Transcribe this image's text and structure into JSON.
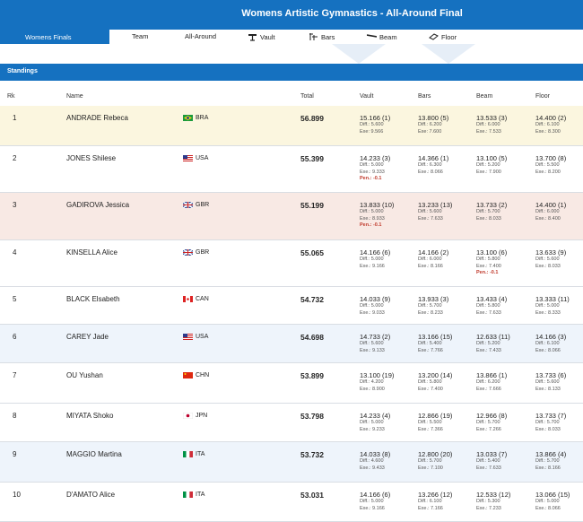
{
  "header": {
    "title": "Womens Artistic Gymnastics - All-Around Final",
    "section": "Womens Finals"
  },
  "nav": [
    {
      "label": "Team",
      "icon": ""
    },
    {
      "label": "All-Around",
      "icon": ""
    },
    {
      "label": "Vault",
      "icon": "vault-icon"
    },
    {
      "label": "Bars",
      "icon": "bars-icon"
    },
    {
      "label": "Beam",
      "icon": "beam-icon"
    },
    {
      "label": "Floor",
      "icon": "floor-icon"
    }
  ],
  "standings": {
    "title": "Standings",
    "columns": {
      "rank": "Rk",
      "name": "Name",
      "total": "Total",
      "vault": "Vault",
      "bars": "Bars",
      "beam": "Beam",
      "floor": "Floor"
    },
    "rows": [
      {
        "rank": "1",
        "name": "ANDRADE Rebeca",
        "country": "BRA",
        "total": "56.899",
        "bg": "#fbf6df",
        "vault": {
          "score": "15.166 (1)",
          "diff": "Diff.: 5.600",
          "exe": "Exe: 9.566",
          "pen": ""
        },
        "bars": {
          "score": "13.800 (5)",
          "diff": "Diff.: 6.200",
          "exe": "Exe: 7.600",
          "pen": ""
        },
        "beam": {
          "score": "13.533 (3)",
          "diff": "Diff.: 6.000",
          "exe": "Exe.: 7.533",
          "pen": ""
        },
        "floor": {
          "score": "14.400 (2)",
          "diff": "Diff.: 6.100",
          "exe": "Exe.: 8.300",
          "pen": ""
        }
      },
      {
        "rank": "2",
        "name": "JONES Shilese",
        "country": "USA",
        "total": "55.399",
        "bg": "#ffffff",
        "vault": {
          "score": "14.233 (3)",
          "diff": "Diff.: 5.000",
          "exe": "Exe.: 9.333",
          "pen": "Pen.: -0.1"
        },
        "bars": {
          "score": "14.366 (1)",
          "diff": "Diff.: 6.300",
          "exe": "Exe.: 8.066",
          "pen": ""
        },
        "beam": {
          "score": "13.100 (5)",
          "diff": "Diff.: 5.200",
          "exe": "Exe.: 7.900",
          "pen": ""
        },
        "floor": {
          "score": "13.700 (8)",
          "diff": "Diff.: 5.500",
          "exe": "Exe.: 8.200",
          "pen": ""
        }
      },
      {
        "rank": "3",
        "name": "GADIROVA Jessica",
        "country": "GBR",
        "total": "55.199",
        "bg": "#f8e9e4",
        "vault": {
          "score": "13.833 (10)",
          "diff": "Diff.: 5.000",
          "exe": "Exe.: 8.933",
          "pen": "Pen.: -0.1"
        },
        "bars": {
          "score": "13.233 (13)",
          "diff": "Diff.: 5.600",
          "exe": "Exe.: 7.633",
          "pen": ""
        },
        "beam": {
          "score": "13.733 (2)",
          "diff": "Diff.: 5.700",
          "exe": "Exe.: 8.033",
          "pen": ""
        },
        "floor": {
          "score": "14.400 (1)",
          "diff": "Diff.: 6.000",
          "exe": "Exe.: 8.400",
          "pen": ""
        }
      },
      {
        "rank": "4",
        "name": "KINSELLA Alice",
        "country": "GBR",
        "total": "55.065",
        "bg": "#ffffff",
        "vault": {
          "score": "14.166 (6)",
          "diff": "Diff.: 5.000",
          "exe": "Exe.: 9.166",
          "pen": ""
        },
        "bars": {
          "score": "14.166 (2)",
          "diff": "Diff.: 6.000",
          "exe": "Exe.: 8.166",
          "pen": ""
        },
        "beam": {
          "score": "13.100 (6)",
          "diff": "Diff.: 5.800",
          "exe": "Exe.: 7.400",
          "pen": "Pen.: -0.1"
        },
        "floor": {
          "score": "13.633 (9)",
          "diff": "Diff.: 5.600",
          "exe": "Exe.: 8.033",
          "pen": ""
        }
      },
      {
        "rank": "5",
        "name": "BLACK Elsabeth",
        "country": "CAN",
        "total": "54.732",
        "bg": "#ffffff",
        "vault": {
          "score": "14.033 (9)",
          "diff": "Diff.: 5.000",
          "exe": "Exe.: 9.033",
          "pen": ""
        },
        "bars": {
          "score": "13.933 (3)",
          "diff": "Diff.: 5.700",
          "exe": "Exe.: 8.233",
          "pen": ""
        },
        "beam": {
          "score": "13.433 (4)",
          "diff": "Diff.: 5.800",
          "exe": "Exe.: 7.633",
          "pen": ""
        },
        "floor": {
          "score": "13.333 (11)",
          "diff": "Diff.: 5.000",
          "exe": "Exe.: 8.333",
          "pen": ""
        }
      },
      {
        "rank": "6",
        "name": "CAREY Jade",
        "country": "USA",
        "total": "54.698",
        "bg": "#eef4fb",
        "vault": {
          "score": "14.733 (2)",
          "diff": "Diff.: 5.600",
          "exe": "Exe.: 9.133",
          "pen": ""
        },
        "bars": {
          "score": "13.166 (15)",
          "diff": "Diff.: 5.400",
          "exe": "Exe.: 7.766",
          "pen": ""
        },
        "beam": {
          "score": "12.633 (11)",
          "diff": "Diff.: 5.200",
          "exe": "Exe.: 7.433",
          "pen": ""
        },
        "floor": {
          "score": "14.166 (3)",
          "diff": "Diff.: 6.100",
          "exe": "Exe.: 8.066",
          "pen": ""
        }
      },
      {
        "rank": "7",
        "name": "OU Yushan",
        "country": "CHN",
        "total": "53.899",
        "bg": "#ffffff",
        "vault": {
          "score": "13.100 (19)",
          "diff": "Diff.: 4.200",
          "exe": "Exe.: 8.900",
          "pen": ""
        },
        "bars": {
          "score": "13.200 (14)",
          "diff": "Diff.: 5.800",
          "exe": "Exe.: 7.400",
          "pen": ""
        },
        "beam": {
          "score": "13.866 (1)",
          "diff": "Diff.: 6.200",
          "exe": "Exe.: 7.666",
          "pen": ""
        },
        "floor": {
          "score": "13.733 (6)",
          "diff": "Diff.: 5.600",
          "exe": "Exe.: 8.133",
          "pen": ""
        }
      },
      {
        "rank": "8",
        "name": "MIYATA Shoko",
        "country": "JPN",
        "total": "53.798",
        "bg": "#ffffff",
        "vault": {
          "score": "14.233 (4)",
          "diff": "Diff.: 5.000",
          "exe": "Exe.: 9.233",
          "pen": ""
        },
        "bars": {
          "score": "12.866 (19)",
          "diff": "Diff.: 5.500",
          "exe": "Exe.: 7.366",
          "pen": ""
        },
        "beam": {
          "score": "12.966 (8)",
          "diff": "Diff.: 5.700",
          "exe": "Exe.: 7.266",
          "pen": ""
        },
        "floor": {
          "score": "13.733 (7)",
          "diff": "Diff.: 5.700",
          "exe": "Exe.: 8.033",
          "pen": ""
        }
      },
      {
        "rank": "9",
        "name": "MAGGIO Martina",
        "country": "ITA",
        "total": "53.732",
        "bg": "#eef4fb",
        "vault": {
          "score": "14.033 (8)",
          "diff": "Diff.: 4.600",
          "exe": "Exe.: 9.433",
          "pen": ""
        },
        "bars": {
          "score": "12.800 (20)",
          "diff": "Diff.: 5.700",
          "exe": "Exe.: 7.100",
          "pen": ""
        },
        "beam": {
          "score": "13.033 (7)",
          "diff": "Diff.: 5.400",
          "exe": "Exe.: 7.633",
          "pen": ""
        },
        "floor": {
          "score": "13.866 (4)",
          "diff": "Diff.: 5.700",
          "exe": "Exe.: 8.166",
          "pen": ""
        }
      },
      {
        "rank": "10",
        "name": "D'AMATO Alice",
        "country": "ITA",
        "total": "53.031",
        "bg": "#ffffff",
        "vault": {
          "score": "14.166 (6)",
          "diff": "Diff.: 5.000",
          "exe": "Exe.: 9.166",
          "pen": ""
        },
        "bars": {
          "score": "13.266 (12)",
          "diff": "Diff.: 6.100",
          "exe": "Exe.: 7.166",
          "pen": ""
        },
        "beam": {
          "score": "12.533 (12)",
          "diff": "Diff.: 5.300",
          "exe": "Exe.: 7.233",
          "pen": ""
        },
        "floor": {
          "score": "13.066 (15)",
          "diff": "Diff.: 5.000",
          "exe": "Exe.: 8.066",
          "pen": ""
        }
      }
    ]
  }
}
